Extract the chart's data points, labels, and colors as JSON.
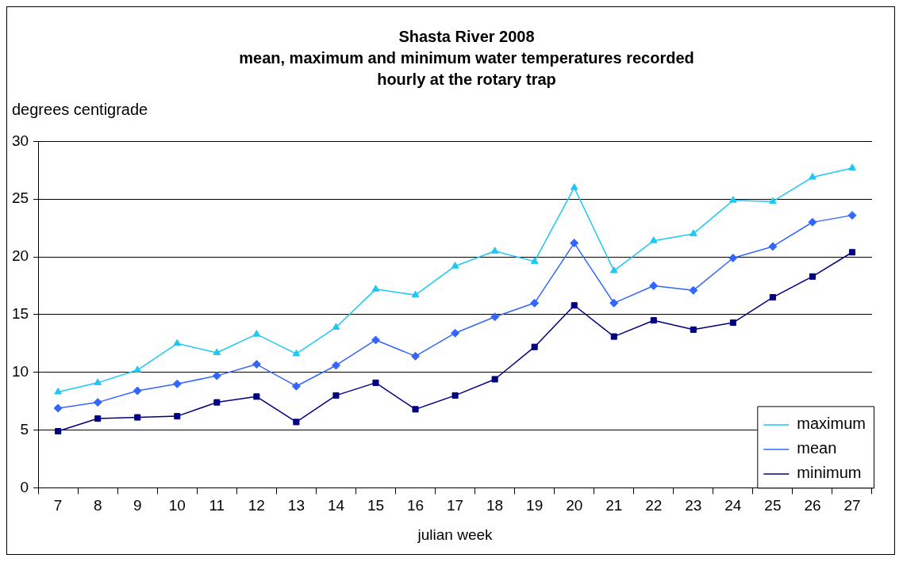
{
  "chart_data": {
    "type": "line",
    "title": "Shasta River 2008",
    "subtitle": "mean, maximum and minimum water temperatures recorded hourly at the rotary trap",
    "xlabel": "julian week",
    "ylabel": "degrees centigrade",
    "categories": [
      "7",
      "8",
      "9",
      "10",
      "11",
      "12",
      "13",
      "14",
      "15",
      "16",
      "17",
      "18",
      "19",
      "20",
      "21",
      "22",
      "23",
      "24",
      "25",
      "26",
      "27"
    ],
    "series": [
      {
        "name": "maximum",
        "color": "#1ec8f5",
        "marker": "triangle",
        "values": [
          8.3,
          9.1,
          10.2,
          12.5,
          11.7,
          13.3,
          11.6,
          13.9,
          17.2,
          16.7,
          19.2,
          20.5,
          19.6,
          26.0,
          18.8,
          21.4,
          22.0,
          24.9,
          24.8,
          26.9,
          27.7
        ]
      },
      {
        "name": "mean",
        "color": "#3366ff",
        "marker": "diamond",
        "values": [
          6.9,
          7.4,
          8.4,
          9.0,
          9.7,
          10.7,
          8.8,
          10.6,
          12.8,
          11.4,
          13.4,
          14.8,
          16.0,
          21.2,
          16.0,
          17.5,
          17.1,
          19.9,
          20.9,
          23.0,
          23.6
        ]
      },
      {
        "name": "minimum",
        "color": "#000080",
        "marker": "square",
        "values": [
          4.9,
          6.0,
          6.1,
          6.2,
          7.4,
          7.9,
          5.7,
          8.0,
          9.1,
          6.8,
          8.0,
          9.4,
          12.2,
          15.8,
          13.1,
          14.5,
          13.7,
          14.3,
          16.5,
          18.3,
          20.4
        ]
      }
    ],
    "ylim": [
      0,
      30
    ],
    "yticks": [
      0,
      5,
      10,
      15,
      20,
      25,
      30
    ],
    "grid": "y",
    "legend": "bottom right",
    "line_style": "solid"
  }
}
